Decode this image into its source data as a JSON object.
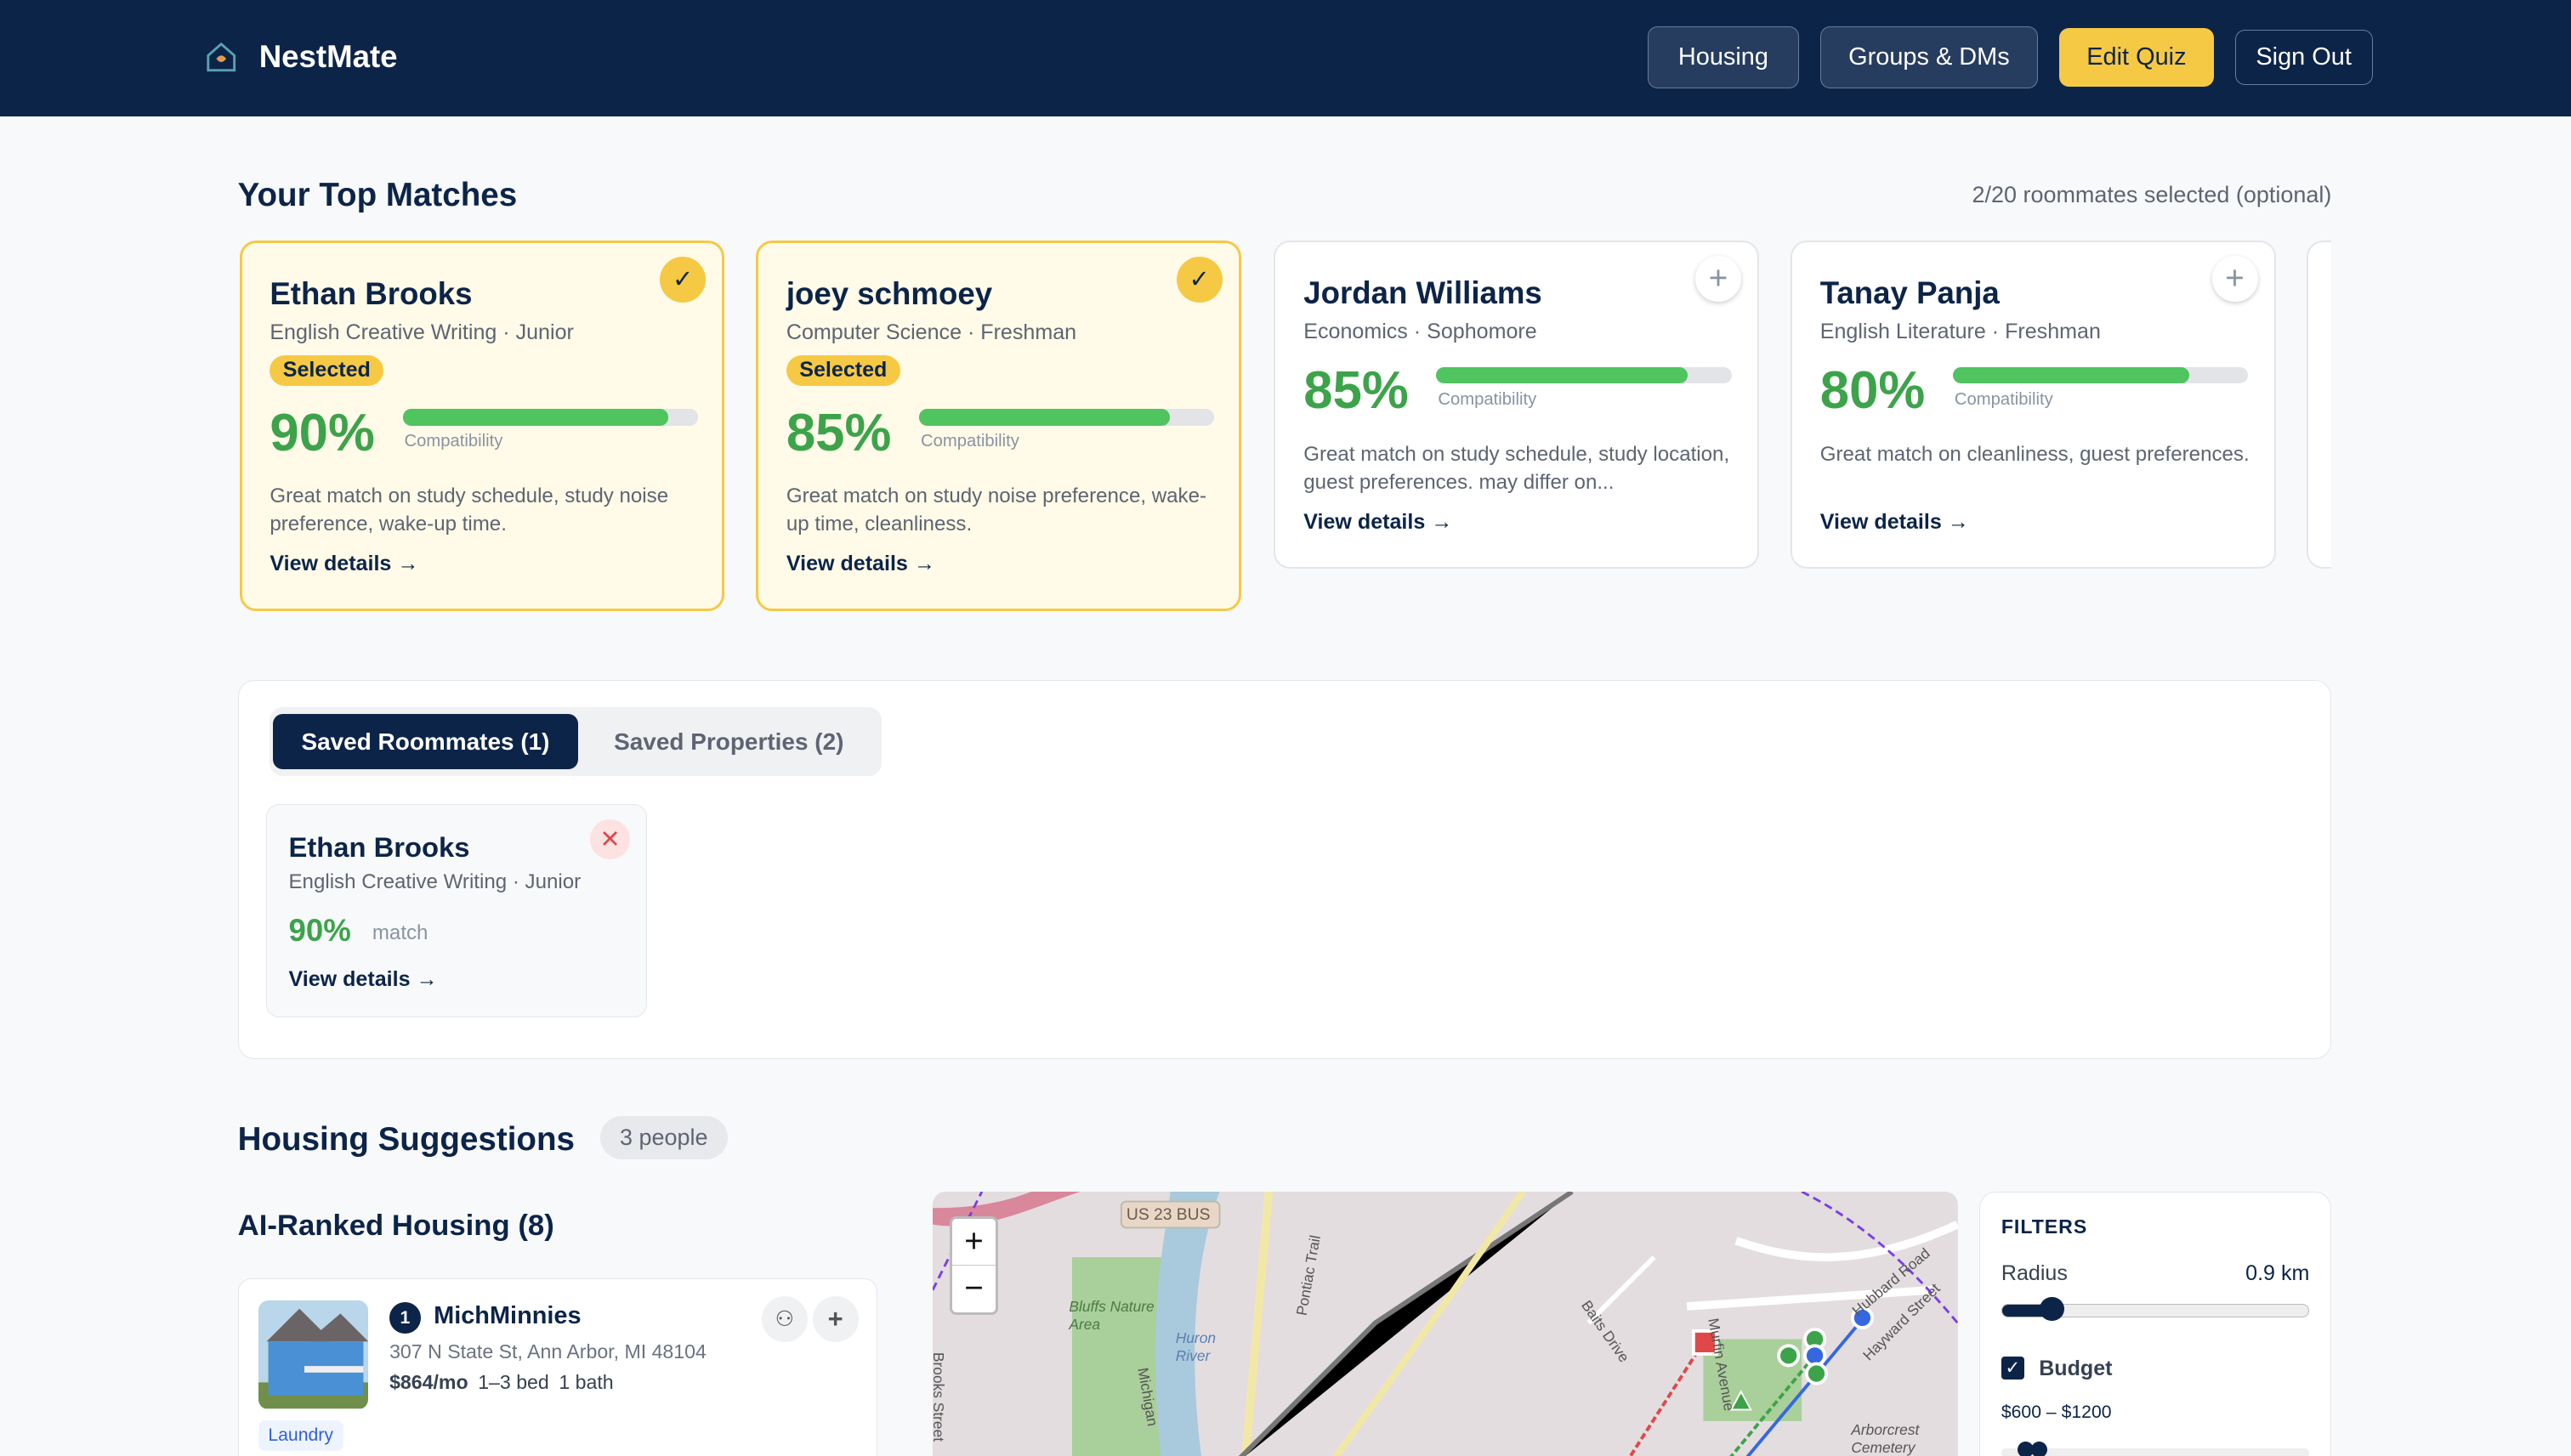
{
  "nav": {
    "brand": "NestMate",
    "logo_text": "NestMate",
    "buttons": [
      "Housing",
      "Groups & DMs",
      "Edit Quiz",
      "Sign Out"
    ]
  },
  "matches": {
    "title": "Your Top Matches",
    "selected_count": "2/20 roommates selected (optional)",
    "cards": [
      {
        "name": "Ethan Brooks",
        "major": "English Creative Writing · Junior",
        "badge": "Selected",
        "percent": "90%",
        "compat": 90,
        "compat_label": "Compatibility",
        "desc": "Great match on study schedule, study noise preference, wake-up time.",
        "link": "View details →",
        "selected": true
      },
      {
        "name": "joey schmoey",
        "major": "Computer Science · Freshman",
        "badge": "Selected",
        "percent": "85%",
        "compat": 85,
        "compat_label": "Compatibility",
        "desc": "Great match on study noise preference, wake-up time, cleanliness.",
        "link": "View details →",
        "selected": true
      },
      {
        "name": "Jordan Williams",
        "major": "Economics · Sophomore",
        "percent": "85%",
        "compat": 85,
        "compat_label": "Compatibility",
        "desc": "Great match on study schedule, study location, guest preferences. may differ on...",
        "link": "View details →",
        "selected": false
      },
      {
        "name": "Tanay Panja",
        "major": "English Literature · Freshman",
        "percent": "80%",
        "compat": 80,
        "compat_label": "Compatibility",
        "desc": "Great match on cleanliness, guest preferences.",
        "link": "View details →",
        "selected": false
      }
    ]
  },
  "saved": {
    "tabs": [
      "Saved Roommates (1)",
      "Saved Properties (2)"
    ],
    "active_tab": 0,
    "items": [
      {
        "name": "Ethan Brooks",
        "major": "English Creative Writing · Junior",
        "percent": "90%",
        "match_label": "match",
        "link": "View details →"
      }
    ]
  },
  "housing": {
    "title": "Housing Suggestions",
    "people": "3 people",
    "ranked_title": "AI-Ranked Housing (8)",
    "listings": [
      {
        "rank": "1",
        "name": "MichMinnies",
        "address": "307 N State St, Ann Arbor, MI 48104",
        "price": "$864/mo",
        "beds": "1–3 bed",
        "baths": "1 bath",
        "tags": [
          "Laundry"
        ]
      }
    ]
  },
  "map": {
    "zoom_in": "+",
    "zoom_out": "−",
    "labels": [
      "US 23 BUS",
      "Bluffs Nature Area",
      "Huron River",
      "Pontiac Trail",
      "Brooks Street",
      "Baits Drive",
      "Hubbard Road",
      "Hayward Street",
      "Murfin Avenue",
      "Arborcrest Cemetery",
      "Michigan"
    ]
  },
  "filters": {
    "title": "FILTERS",
    "radius_label": "Radius",
    "radius_value": "0.9 km",
    "radius_fraction": 0.16,
    "budget_label": "Budget",
    "budget_checked": true,
    "budget_range": "$600 – $1200"
  },
  "colors": {
    "navy": "#0c2448",
    "yellow": "#f6c944",
    "green": "#3da34a"
  }
}
